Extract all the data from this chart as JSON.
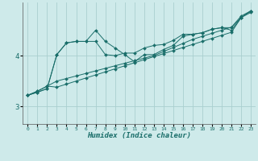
{
  "xlabel": "Humidex (Indice chaleur)",
  "bg_color": "#ceeaea",
  "grid_color": "#aacfcf",
  "line_color": "#1a6e6a",
  "xlim": [
    -0.5,
    23.5
  ],
  "ylim": [
    2.65,
    5.05
  ],
  "yticks": [
    3,
    4
  ],
  "xticks": [
    0,
    1,
    2,
    3,
    4,
    5,
    6,
    7,
    8,
    9,
    10,
    11,
    12,
    13,
    14,
    15,
    16,
    17,
    18,
    19,
    20,
    21,
    22,
    23
  ],
  "series": [
    {
      "x": [
        0,
        1,
        2,
        3,
        4,
        5,
        6,
        7,
        8,
        9,
        10,
        11,
        12,
        13,
        14,
        15,
        16,
        17,
        18,
        19,
        20,
        21,
        22,
        23
      ],
      "y": [
        3.22,
        3.3,
        3.4,
        3.38,
        3.44,
        3.5,
        3.56,
        3.62,
        3.68,
        3.74,
        3.8,
        3.86,
        3.92,
        3.98,
        4.04,
        4.1,
        4.16,
        4.22,
        4.28,
        4.34,
        4.4,
        4.46,
        4.75,
        4.85
      ]
    },
    {
      "x": [
        0,
        1,
        2,
        3,
        4,
        5,
        6,
        7,
        8,
        9,
        10,
        11,
        12,
        13,
        14,
        15,
        16,
        17,
        18,
        19,
        20,
        21,
        22,
        23
      ],
      "y": [
        3.22,
        3.3,
        3.4,
        3.5,
        3.55,
        3.6,
        3.65,
        3.7,
        3.75,
        3.8,
        3.85,
        3.9,
        3.95,
        4.0,
        4.08,
        4.16,
        4.24,
        4.32,
        4.38,
        4.44,
        4.5,
        4.56,
        4.78,
        4.88
      ]
    },
    {
      "x": [
        0,
        1,
        2,
        3,
        4,
        5,
        6,
        7,
        8,
        9,
        10,
        11,
        12,
        13,
        14,
        15,
        16,
        17,
        18,
        19,
        20,
        21,
        22,
        23
      ],
      "y": [
        3.22,
        3.28,
        3.35,
        4.02,
        4.25,
        4.28,
        4.28,
        4.28,
        4.02,
        4.0,
        4.05,
        4.05,
        4.15,
        4.2,
        4.22,
        4.3,
        4.42,
        4.42,
        4.45,
        4.52,
        4.55,
        4.55,
        4.75,
        4.88
      ]
    },
    {
      "x": [
        0,
        1,
        2,
        3,
        4,
        5,
        6,
        7,
        8,
        9,
        10,
        11,
        12,
        13,
        14,
        15,
        16,
        17,
        18,
        19,
        20,
        21,
        22,
        23
      ],
      "y": [
        3.22,
        3.28,
        3.35,
        4.02,
        4.25,
        4.28,
        4.28,
        4.5,
        4.28,
        4.15,
        4.02,
        3.88,
        4.02,
        4.02,
        4.12,
        4.2,
        4.38,
        4.42,
        4.45,
        4.52,
        4.55,
        4.5,
        4.75,
        4.88
      ]
    }
  ]
}
